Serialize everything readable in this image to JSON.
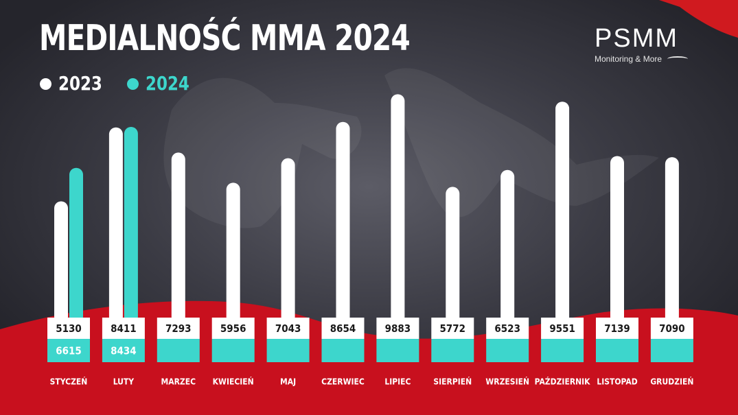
{
  "title": "MEDIALNOŚĆ MMA 2024",
  "brand": {
    "name": "PSMM",
    "tagline": "Monitoring & More"
  },
  "colors": {
    "background": "#2c2c34",
    "accent_red": "#c8101e",
    "series_2023": "#ffffff",
    "series_2024": "#3dd6cc",
    "value_text": "#1a1a1a",
    "label_text": "#ffffff"
  },
  "chart_data": {
    "type": "bar",
    "title": "MEDIALNOŚĆ MMA 2024",
    "categories": [
      "STYCZEŃ",
      "LUTY",
      "MARZEC",
      "KWIECIEŃ",
      "MAJ",
      "CZERWIEC",
      "LIPIEC",
      "SIERPIEŃ",
      "WRZESIEŃ",
      "PAŹDZIERNIK",
      "LISTOPAD",
      "GRUDZIEŃ"
    ],
    "series": [
      {
        "name": "2023",
        "values": [
          5130,
          8411,
          7293,
          5956,
          7043,
          8654,
          9883,
          5772,
          6523,
          9551,
          7139,
          7090
        ]
      },
      {
        "name": "2024",
        "values": [
          6615,
          8434,
          null,
          null,
          null,
          null,
          null,
          null,
          null,
          null,
          null,
          null
        ]
      }
    ],
    "legend": "top-left",
    "grid": false,
    "xlabel": "",
    "ylabel": ""
  }
}
